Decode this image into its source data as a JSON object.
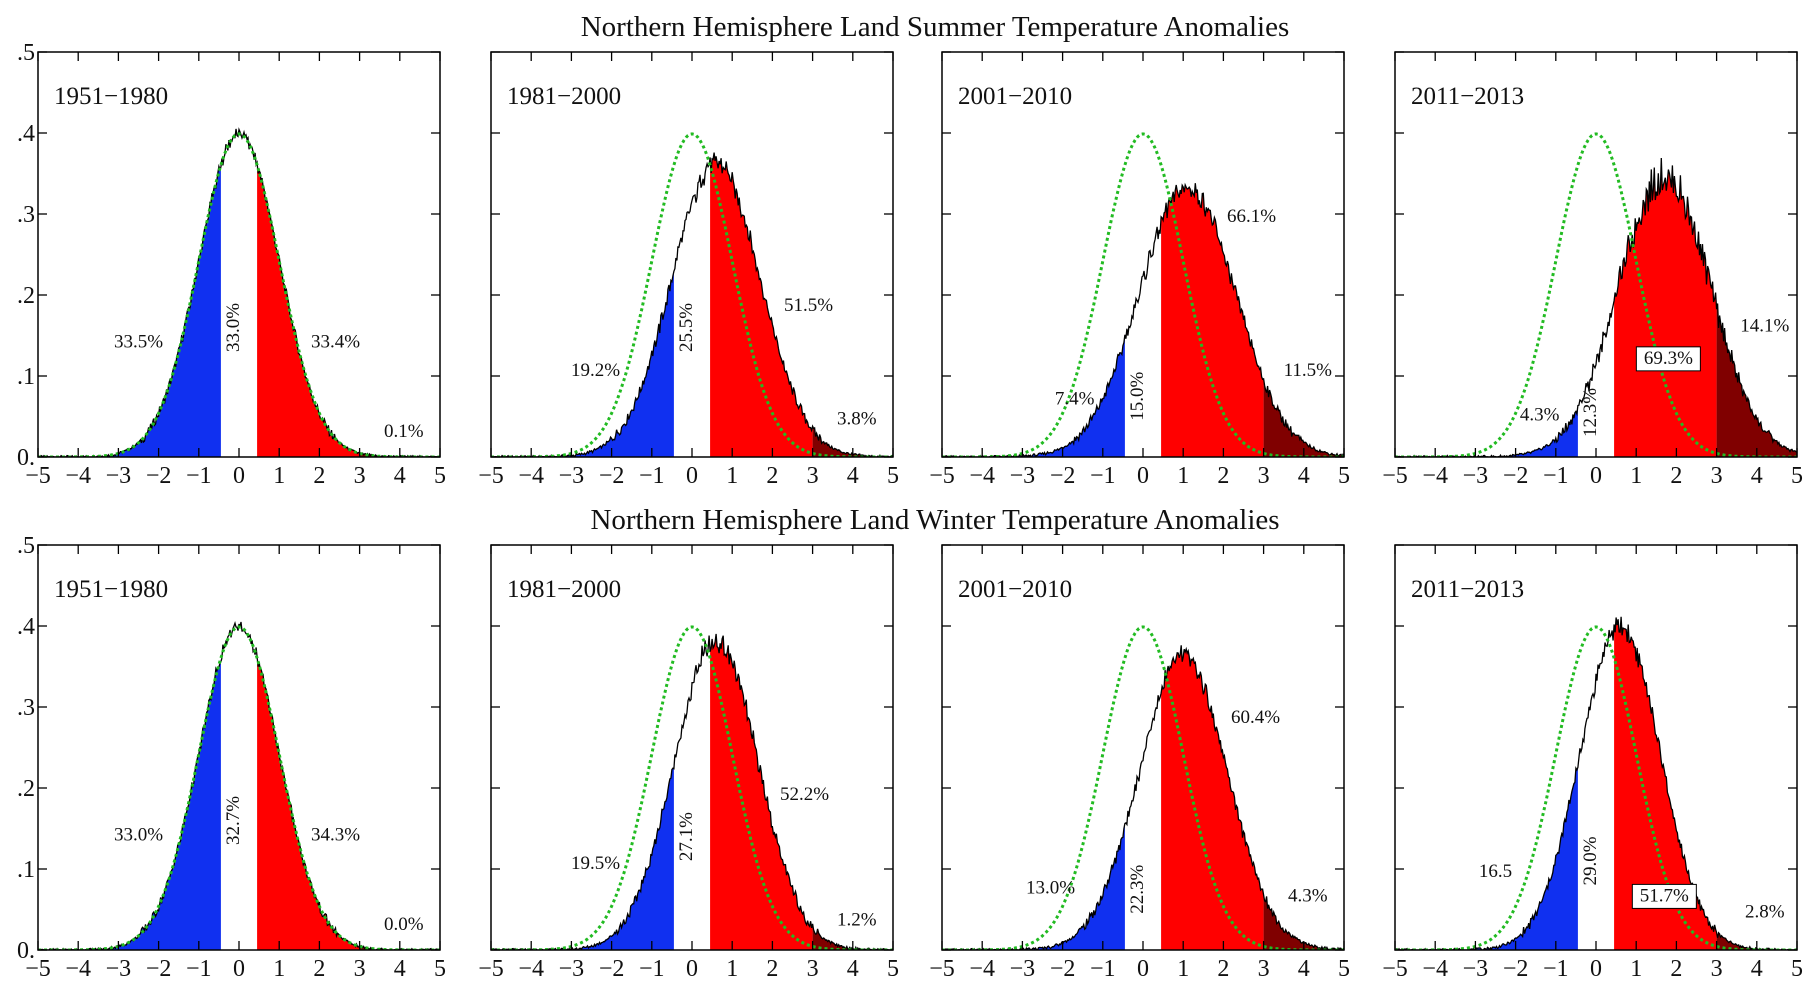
{
  "figure": {
    "rows": [
      {
        "title": "Northern Hemisphere Land  Summer Temperature Anomalies"
      },
      {
        "title": "Northern Hemisphere Land  Winter Temperature Anomalies"
      }
    ]
  },
  "chart_data": [
    {
      "type": "area",
      "row": 0,
      "col": 0,
      "period": "1951−1980",
      "mean": 0.0,
      "sd": 1.0,
      "reference_mean": 0,
      "reference_sd": 1,
      "xlim": [
        -5,
        5
      ],
      "ylim": [
        0,
        0.5
      ],
      "xticks": [
        {
          "v": -5,
          "t": "−5"
        },
        {
          "v": -4,
          "t": "−4"
        },
        {
          "v": -3,
          "t": "−3"
        },
        {
          "v": -2,
          "t": "−2"
        },
        {
          "v": -1,
          "t": "−1"
        },
        {
          "v": 0,
          "t": "0"
        },
        {
          "v": 1,
          "t": "1"
        },
        {
          "v": 2,
          "t": "2"
        },
        {
          "v": 3,
          "t": "3"
        },
        {
          "v": 4,
          "t": "4"
        },
        {
          "v": 5,
          "t": "5"
        }
      ],
      "yticks": [
        {
          "v": 0,
          "t": "0."
        },
        {
          "v": 0.1,
          "t": ".1"
        },
        {
          "v": 0.2,
          "t": ".2"
        },
        {
          "v": 0.3,
          "t": ".3"
        },
        {
          "v": 0.4,
          "t": ".4"
        },
        {
          "v": 0.5,
          "t": ".5"
        }
      ],
      "colors": {
        "cold": "#1030f0",
        "hot": "#ff0000",
        "extreme": "#800000",
        "reference": "#22bb22",
        "curve": "#000000"
      },
      "labels": [
        {
          "text": "33.5%",
          "x": -2.5,
          "y": 0.135
        },
        {
          "text": "33.0%",
          "x": 0,
          "y": 0.16,
          "rotate": true
        },
        {
          "text": "33.4%",
          "x": 2.4,
          "y": 0.135
        },
        {
          "text": "0.1%",
          "x": 4.1,
          "y": 0.025
        }
      ]
    },
    {
      "type": "area",
      "row": 0,
      "col": 1,
      "period": "1981−2000",
      "mean": 0.6,
      "sd": 1.1,
      "reference_mean": 0,
      "reference_sd": 1,
      "xlim": [
        -5,
        5
      ],
      "ylim": [
        0,
        0.5
      ],
      "xticks": [
        {
          "v": -5,
          "t": "−5"
        },
        {
          "v": -4,
          "t": "−4"
        },
        {
          "v": -3,
          "t": "−3"
        },
        {
          "v": -2,
          "t": "−2"
        },
        {
          "v": -1,
          "t": "−1"
        },
        {
          "v": 0,
          "t": "0"
        },
        {
          "v": 1,
          "t": "1"
        },
        {
          "v": 2,
          "t": "2"
        },
        {
          "v": 3,
          "t": "3"
        },
        {
          "v": 4,
          "t": "4"
        },
        {
          "v": 5,
          "t": "5"
        }
      ],
      "yticks": [
        {
          "v": 0,
          "t": "0."
        },
        {
          "v": 0.1,
          "t": ".1"
        },
        {
          "v": 0.2,
          "t": ".2"
        },
        {
          "v": 0.3,
          "t": ".3"
        },
        {
          "v": 0.4,
          "t": ".4"
        },
        {
          "v": 0.5,
          "t": ".5"
        }
      ],
      "colors": {
        "cold": "#1030f0",
        "hot": "#ff0000",
        "extreme": "#800000",
        "reference": "#22bb22",
        "curve": "#000000"
      },
      "labels": [
        {
          "text": "19.2%",
          "x": -2.4,
          "y": 0.1
        },
        {
          "text": "25.5%",
          "x": 0,
          "y": 0.16,
          "rotate": true
        },
        {
          "text": "51.5%",
          "x": 2.9,
          "y": 0.18
        },
        {
          "text": "3.8%",
          "x": 4.1,
          "y": 0.04
        }
      ]
    },
    {
      "type": "area",
      "row": 0,
      "col": 2,
      "period": "2001−2010",
      "mean": 1.1,
      "sd": 1.2,
      "reference_mean": 0,
      "reference_sd": 1,
      "xlim": [
        -5,
        5
      ],
      "ylim": [
        0,
        0.5
      ],
      "xticks": [
        {
          "v": -5,
          "t": "−5"
        },
        {
          "v": -4,
          "t": "−4"
        },
        {
          "v": -3,
          "t": "−3"
        },
        {
          "v": -2,
          "t": "−2"
        },
        {
          "v": -1,
          "t": "−1"
        },
        {
          "v": 0,
          "t": "0"
        },
        {
          "v": 1,
          "t": "1"
        },
        {
          "v": 2,
          "t": "2"
        },
        {
          "v": 3,
          "t": "3"
        },
        {
          "v": 4,
          "t": "4"
        },
        {
          "v": 5,
          "t": "5"
        }
      ],
      "yticks": [
        {
          "v": 0,
          "t": "0."
        },
        {
          "v": 0.1,
          "t": ".1"
        },
        {
          "v": 0.2,
          "t": ".2"
        },
        {
          "v": 0.3,
          "t": ".3"
        },
        {
          "v": 0.4,
          "t": ".4"
        },
        {
          "v": 0.5,
          "t": ".5"
        }
      ],
      "colors": {
        "cold": "#1030f0",
        "hot": "#ff0000",
        "extreme": "#800000",
        "reference": "#22bb22",
        "curve": "#000000"
      },
      "labels": [
        {
          "text": "7.4%",
          "x": -1.7,
          "y": 0.065
        },
        {
          "text": "15.0%",
          "x": 0,
          "y": 0.075,
          "rotate": true
        },
        {
          "text": "66.1%",
          "x": 2.7,
          "y": 0.29
        },
        {
          "text": "11.5%",
          "x": 4.1,
          "y": 0.1
        }
      ]
    },
    {
      "type": "area",
      "row": 0,
      "col": 3,
      "period": "2011−2013",
      "mean": 1.7,
      "sd": 1.15,
      "reference_mean": 0,
      "reference_sd": 1,
      "xlim": [
        -5,
        5
      ],
      "ylim": [
        0,
        0.5
      ],
      "xticks": [
        {
          "v": -5,
          "t": "−5"
        },
        {
          "v": -4,
          "t": "−4"
        },
        {
          "v": -3,
          "t": "−3"
        },
        {
          "v": -2,
          "t": "−2"
        },
        {
          "v": -1,
          "t": "−1"
        },
        {
          "v": 0,
          "t": "0"
        },
        {
          "v": 1,
          "t": "1"
        },
        {
          "v": 2,
          "t": "2"
        },
        {
          "v": 3,
          "t": "3"
        },
        {
          "v": 4,
          "t": "4"
        },
        {
          "v": 5,
          "t": "5"
        }
      ],
      "yticks": [
        {
          "v": 0,
          "t": "0."
        },
        {
          "v": 0.1,
          "t": ".1"
        },
        {
          "v": 0.2,
          "t": ".2"
        },
        {
          "v": 0.3,
          "t": ".3"
        },
        {
          "v": 0.4,
          "t": ".4"
        },
        {
          "v": 0.5,
          "t": ".5"
        }
      ],
      "colors": {
        "cold": "#1030f0",
        "hot": "#ff0000",
        "extreme": "#800000",
        "reference": "#22bb22",
        "curve": "#000000"
      },
      "labels": [
        {
          "text": "4.3%",
          "x": -1.4,
          "y": 0.045
        },
        {
          "text": "12.3%",
          "x": 0,
          "y": 0.055,
          "rotate": true
        },
        {
          "text": "69.3%",
          "x": 1.8,
          "y": 0.115,
          "boxed": true
        },
        {
          "text": "14.1%",
          "x": 4.2,
          "y": 0.155
        }
      ]
    },
    {
      "type": "area",
      "row": 1,
      "col": 0,
      "period": "1951−1980",
      "mean": 0.0,
      "sd": 1.0,
      "reference_mean": 0,
      "reference_sd": 1,
      "xlim": [
        -5,
        5
      ],
      "ylim": [
        0,
        0.5
      ],
      "xticks": [
        {
          "v": -5,
          "t": "−5"
        },
        {
          "v": -4,
          "t": "−4"
        },
        {
          "v": -3,
          "t": "−3"
        },
        {
          "v": -2,
          "t": "−2"
        },
        {
          "v": -1,
          "t": "−1"
        },
        {
          "v": 0,
          "t": "0"
        },
        {
          "v": 1,
          "t": "1"
        },
        {
          "v": 2,
          "t": "2"
        },
        {
          "v": 3,
          "t": "3"
        },
        {
          "v": 4,
          "t": "4"
        },
        {
          "v": 5,
          "t": "5"
        }
      ],
      "yticks": [
        {
          "v": 0,
          "t": "0."
        },
        {
          "v": 0.1,
          "t": ".1"
        },
        {
          "v": 0.2,
          "t": ".2"
        },
        {
          "v": 0.3,
          "t": ".3"
        },
        {
          "v": 0.4,
          "t": ".4"
        },
        {
          "v": 0.5,
          "t": ".5"
        }
      ],
      "colors": {
        "cold": "#1030f0",
        "hot": "#ff0000",
        "extreme": "#800000",
        "reference": "#22bb22",
        "curve": "#000000"
      },
      "labels": [
        {
          "text": "33.0%",
          "x": -2.5,
          "y": 0.135
        },
        {
          "text": "32.7%",
          "x": 0,
          "y": 0.16,
          "rotate": true
        },
        {
          "text": "34.3%",
          "x": 2.4,
          "y": 0.135
        },
        {
          "text": "0.0%",
          "x": 4.1,
          "y": 0.025
        }
      ]
    },
    {
      "type": "area",
      "row": 1,
      "col": 1,
      "period": "1981−2000",
      "mean": 0.6,
      "sd": 1.05,
      "reference_mean": 0,
      "reference_sd": 1,
      "xlim": [
        -5,
        5
      ],
      "ylim": [
        0,
        0.5
      ],
      "xticks": [
        {
          "v": -5,
          "t": "−5"
        },
        {
          "v": -4,
          "t": "−4"
        },
        {
          "v": -3,
          "t": "−3"
        },
        {
          "v": -2,
          "t": "−2"
        },
        {
          "v": -1,
          "t": "−1"
        },
        {
          "v": 0,
          "t": "0"
        },
        {
          "v": 1,
          "t": "1"
        },
        {
          "v": 2,
          "t": "2"
        },
        {
          "v": 3,
          "t": "3"
        },
        {
          "v": 4,
          "t": "4"
        },
        {
          "v": 5,
          "t": "5"
        }
      ],
      "yticks": [
        {
          "v": 0,
          "t": "0."
        },
        {
          "v": 0.1,
          "t": ".1"
        },
        {
          "v": 0.2,
          "t": ".2"
        },
        {
          "v": 0.3,
          "t": ".3"
        },
        {
          "v": 0.4,
          "t": ".4"
        },
        {
          "v": 0.5,
          "t": ".5"
        }
      ],
      "colors": {
        "cold": "#1030f0",
        "hot": "#ff0000",
        "extreme": "#800000",
        "reference": "#22bb22",
        "curve": "#000000"
      },
      "labels": [
        {
          "text": "19.5%",
          "x": -2.4,
          "y": 0.1
        },
        {
          "text": "27.1%",
          "x": 0,
          "y": 0.14,
          "rotate": true
        },
        {
          "text": "52.2%",
          "x": 2.8,
          "y": 0.185
        },
        {
          "text": "1.2%",
          "x": 4.1,
          "y": 0.03
        }
      ]
    },
    {
      "type": "area",
      "row": 1,
      "col": 2,
      "period": "2001−2010",
      "mean": 1.0,
      "sd": 1.1,
      "reference_mean": 0,
      "reference_sd": 1,
      "xlim": [
        -5,
        5
      ],
      "ylim": [
        0,
        0.5
      ],
      "xticks": [
        {
          "v": -5,
          "t": "−5"
        },
        {
          "v": -4,
          "t": "−4"
        },
        {
          "v": -3,
          "t": "−3"
        },
        {
          "v": -2,
          "t": "−2"
        },
        {
          "v": -1,
          "t": "−1"
        },
        {
          "v": 0,
          "t": "0"
        },
        {
          "v": 1,
          "t": "1"
        },
        {
          "v": 2,
          "t": "2"
        },
        {
          "v": 3,
          "t": "3"
        },
        {
          "v": 4,
          "t": "4"
        },
        {
          "v": 5,
          "t": "5"
        }
      ],
      "yticks": [
        {
          "v": 0,
          "t": "0."
        },
        {
          "v": 0.1,
          "t": ".1"
        },
        {
          "v": 0.2,
          "t": ".2"
        },
        {
          "v": 0.3,
          "t": ".3"
        },
        {
          "v": 0.4,
          "t": ".4"
        },
        {
          "v": 0.5,
          "t": ".5"
        }
      ],
      "colors": {
        "cold": "#1030f0",
        "hot": "#ff0000",
        "extreme": "#800000",
        "reference": "#22bb22",
        "curve": "#000000"
      },
      "labels": [
        {
          "text": "13.0%",
          "x": -2.3,
          "y": 0.07
        },
        {
          "text": "22.3%",
          "x": 0,
          "y": 0.075,
          "rotate": true
        },
        {
          "text": "60.4%",
          "x": 2.8,
          "y": 0.28
        },
        {
          "text": "4.3%",
          "x": 4.1,
          "y": 0.06
        }
      ]
    },
    {
      "type": "area",
      "row": 1,
      "col": 3,
      "period": "2011−2013",
      "mean": 0.6,
      "sd": 1.0,
      "reference_mean": 0,
      "reference_sd": 1,
      "xlim": [
        -5,
        5
      ],
      "ylim": [
        0,
        0.5
      ],
      "xticks": [
        {
          "v": -5,
          "t": "−5"
        },
        {
          "v": -4,
          "t": "−4"
        },
        {
          "v": -3,
          "t": "−3"
        },
        {
          "v": -2,
          "t": "−2"
        },
        {
          "v": -1,
          "t": "−1"
        },
        {
          "v": 0,
          "t": "0"
        },
        {
          "v": 1,
          "t": "1"
        },
        {
          "v": 2,
          "t": "2"
        },
        {
          "v": 3,
          "t": "3"
        },
        {
          "v": 4,
          "t": "4"
        },
        {
          "v": 5,
          "t": "5"
        }
      ],
      "yticks": [
        {
          "v": 0,
          "t": "0."
        },
        {
          "v": 0.1,
          "t": ".1"
        },
        {
          "v": 0.2,
          "t": ".2"
        },
        {
          "v": 0.3,
          "t": ".3"
        },
        {
          "v": 0.4,
          "t": ".4"
        },
        {
          "v": 0.5,
          "t": ".5"
        }
      ],
      "colors": {
        "cold": "#1030f0",
        "hot": "#ff0000",
        "extreme": "#800000",
        "reference": "#22bb22",
        "curve": "#000000"
      },
      "labels": [
        {
          "text": "16.5",
          "x": -2.5,
          "y": 0.09
        },
        {
          "text": "29.0%",
          "x": 0,
          "y": 0.11,
          "rotate": true
        },
        {
          "text": "51.7%",
          "x": 1.7,
          "y": 0.06,
          "boxed": true
        },
        {
          "text": "2.8%",
          "x": 4.2,
          "y": 0.04
        }
      ]
    }
  ]
}
